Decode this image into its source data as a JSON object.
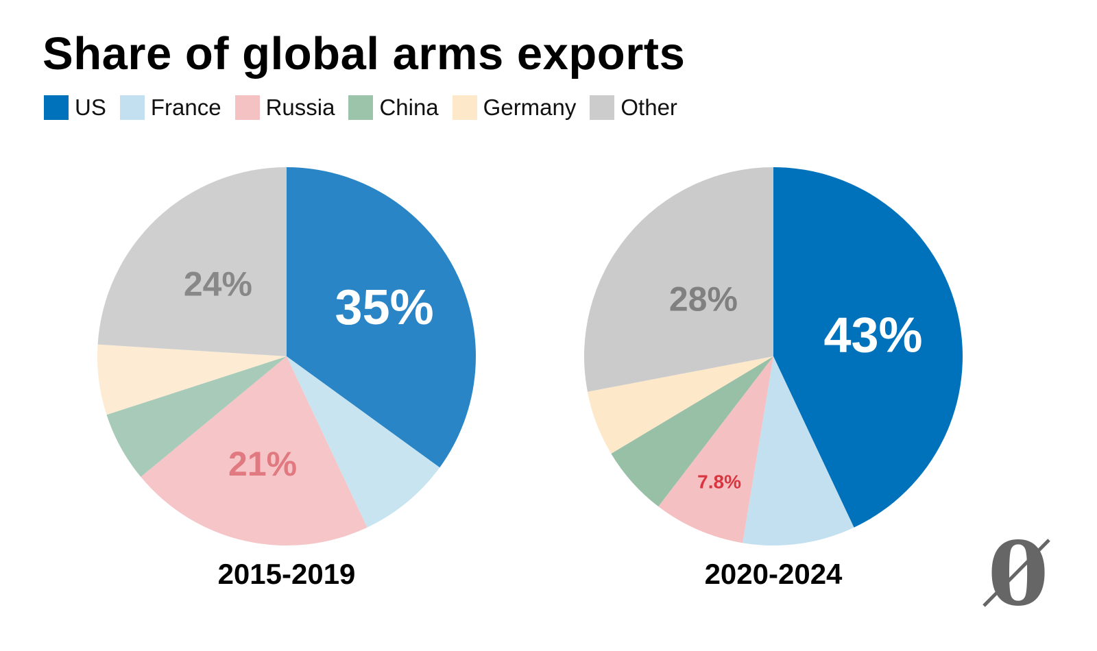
{
  "title": "Share of global arms exports",
  "legend": [
    {
      "label": "US",
      "color": "#0072bc"
    },
    {
      "label": "France",
      "color": "#c2e0f0"
    },
    {
      "label": "Russia",
      "color": "#f4c2c3"
    },
    {
      "label": "China",
      "color": "#9cc4aa"
    },
    {
      "label": "Germany",
      "color": "#fde8c9"
    },
    {
      "label": "Other",
      "color": "#cccccc"
    }
  ],
  "chart_data": [
    {
      "type": "pie",
      "title": "2015-2019",
      "categories": [
        "US",
        "France",
        "Russia",
        "China",
        "Germany",
        "Other"
      ],
      "values": [
        35,
        8,
        21,
        6,
        6,
        24
      ],
      "colors": [
        "#2985c6",
        "#c8e4f1",
        "#f5c5c7",
        "#a8cab8",
        "#fdebd3",
        "#cfcfcf"
      ],
      "data_labels": [
        {
          "category": "US",
          "text": "35%",
          "color": "#ffffff"
        },
        {
          "category": "Russia",
          "text": "21%",
          "color": "#e07a80"
        },
        {
          "category": "Other",
          "text": "24%",
          "color": "#888888"
        }
      ]
    },
    {
      "type": "pie",
      "title": "2020-2024",
      "categories": [
        "US",
        "France",
        "Russia",
        "China",
        "Germany",
        "Other"
      ],
      "values": [
        43,
        9.6,
        7.8,
        6,
        5.6,
        28
      ],
      "colors": [
        "#0072bc",
        "#c2e0f0",
        "#f4c0c2",
        "#98c0a6",
        "#fde8c9",
        "#cbcbcb"
      ],
      "data_labels": [
        {
          "category": "US",
          "text": "43%",
          "color": "#ffffff"
        },
        {
          "category": "Russia",
          "text": "7.8%",
          "color": "#d9343f"
        },
        {
          "category": "Other",
          "text": "28%",
          "color": "#808080"
        }
      ]
    }
  ],
  "logo": {
    "glyph": "0",
    "color": "#666666"
  }
}
